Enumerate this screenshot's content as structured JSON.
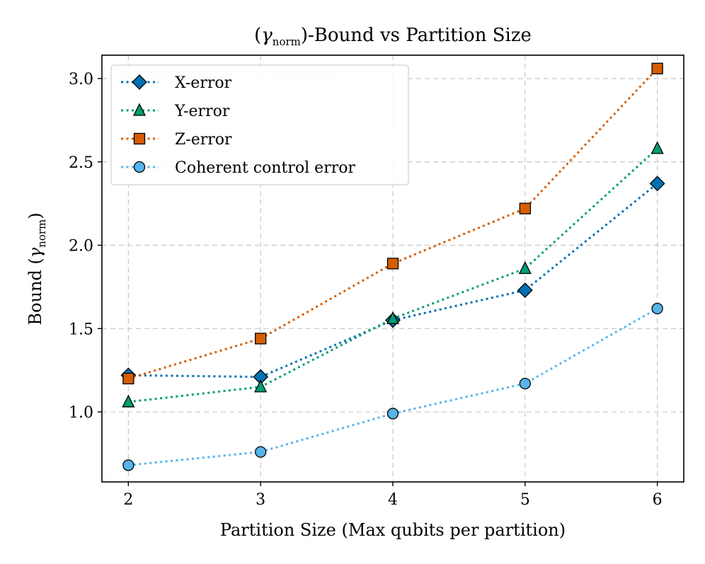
{
  "chart_data": {
    "type": "line",
    "title": "(γ_norm)-Bound vs Partition Size",
    "title_parts": {
      "open": "(",
      "symbol": "γ",
      "subscript": "norm",
      "close": ")-Bound vs Partition Size"
    },
    "xlabel": "Partition Size (Max qubits per partition)",
    "ylabel": "Bound (γ_norm)",
    "ylabel_parts": {
      "prefix": "Bound (",
      "symbol": "γ",
      "subscript": "norm",
      "suffix": ")"
    },
    "x": [
      2,
      3,
      4,
      5,
      6
    ],
    "x_ticks": [
      "2",
      "3",
      "4",
      "5",
      "6"
    ],
    "y_ticks": [
      1.0,
      1.5,
      2.0,
      2.5,
      3.0
    ],
    "y_tick_labels": [
      "1.0",
      "1.5",
      "2.0",
      "2.5",
      "3.0"
    ],
    "xlim": [
      1.8,
      6.2
    ],
    "ylim": [
      0.58,
      3.14
    ],
    "grid": true,
    "legend_position": "top-left",
    "series": [
      {
        "name": "X-error",
        "marker": "diamond",
        "color": "#0072b2",
        "values": [
          1.22,
          1.21,
          1.55,
          1.73,
          2.37
        ]
      },
      {
        "name": "Y-error",
        "marker": "triangle",
        "color": "#009e73",
        "values": [
          1.06,
          1.15,
          1.56,
          1.86,
          2.58
        ]
      },
      {
        "name": "Z-error",
        "marker": "square",
        "color": "#d55e00",
        "values": [
          1.2,
          1.44,
          1.89,
          2.22,
          3.06
        ]
      },
      {
        "name": "Coherent control error",
        "marker": "circle",
        "color": "#56b4e9",
        "values": [
          0.68,
          0.76,
          0.99,
          1.17,
          1.62
        ]
      }
    ]
  }
}
